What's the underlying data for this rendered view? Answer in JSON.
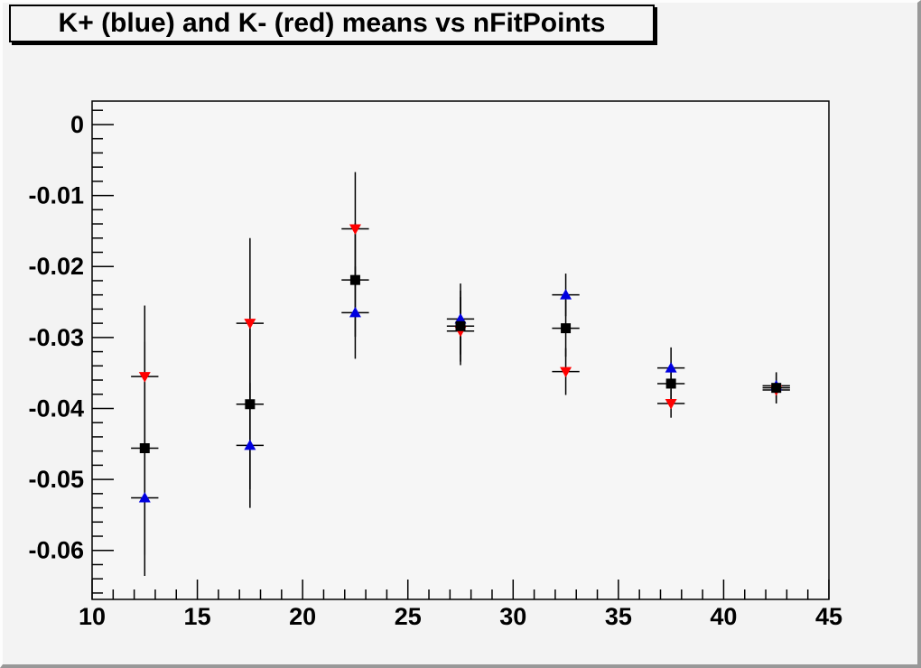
{
  "chart_data": {
    "type": "scatter",
    "title": "K+ (blue) and K- (red) means vs nFitPoints",
    "xlabel": "",
    "ylabel": "",
    "xlim": [
      10,
      45
    ],
    "ylim": [
      -0.0669,
      0.0033
    ],
    "x_major_ticks": [
      10,
      15,
      20,
      25,
      30,
      35,
      40,
      45
    ],
    "x_tick_labels": [
      "10",
      "15",
      "20",
      "25",
      "30",
      "35",
      "40",
      "45"
    ],
    "x_minor_step": 1,
    "y_major_ticks": [
      0,
      -0.01,
      -0.02,
      -0.03,
      -0.04,
      -0.05,
      -0.06
    ],
    "y_tick_labels": [
      "0",
      "-0.01",
      "-0.02",
      "-0.03",
      "-0.04",
      "-0.05",
      "-0.06"
    ],
    "y_minor_step": 0.002,
    "grid": false,
    "legend": "none (colors identified in title)",
    "x_error": 0.65,
    "error_bar_color": "#000000",
    "frame_fill": "#f6f6f6",
    "canvas_fill": "#f3f3f3",
    "series": [
      {
        "name": "K+ (blue)",
        "marker": "triangle-up",
        "color": "#0000e0",
        "points": [
          {
            "x": 12.5,
            "y": -0.0526,
            "ey": 0.011
          },
          {
            "x": 17.5,
            "y": -0.0452,
            "ey": 0.0088
          },
          {
            "x": 22.5,
            "y": -0.0265,
            "ey": 0.0065
          },
          {
            "x": 27.5,
            "y": -0.0274,
            "ey": 0.005
          },
          {
            "x": 32.5,
            "y": -0.024,
            "ey": 0.003
          },
          {
            "x": 37.5,
            "y": -0.0343,
            "ey": 0.0029
          },
          {
            "x": 42.5,
            "y": -0.0368,
            "ey": 0.0018
          }
        ]
      },
      {
        "name": "K- (red)",
        "marker": "triangle-down",
        "color": "#ff0000",
        "points": [
          {
            "x": 12.5,
            "y": -0.0355,
            "ey": 0.01
          },
          {
            "x": 17.5,
            "y": -0.028,
            "ey": 0.012
          },
          {
            "x": 22.5,
            "y": -0.0147,
            "ey": 0.008
          },
          {
            "x": 27.5,
            "y": -0.0291,
            "ey": 0.0048
          },
          {
            "x": 32.5,
            "y": -0.0348,
            "ey": 0.0033
          },
          {
            "x": 37.5,
            "y": -0.0393,
            "ey": 0.002
          },
          {
            "x": 42.5,
            "y": -0.0374,
            "ey": 0.0018
          }
        ]
      },
      {
        "name": "black squares (unlabeled)",
        "marker": "square",
        "color": "#000000",
        "points": [
          {
            "x": 12.5,
            "y": -0.0456,
            "ey": 0.015
          },
          {
            "x": 17.5,
            "y": -0.0394,
            "ey": 0.012
          },
          {
            "x": 22.5,
            "y": -0.0219,
            "ey": 0.008
          },
          {
            "x": 27.5,
            "y": -0.0284,
            "ey": 0.005
          },
          {
            "x": 32.5,
            "y": -0.0287,
            "ey": 0.004
          },
          {
            "x": 37.5,
            "y": -0.0365,
            "ey": 0.003
          },
          {
            "x": 42.5,
            "y": -0.0371,
            "ey": 0.0022
          }
        ]
      }
    ]
  }
}
